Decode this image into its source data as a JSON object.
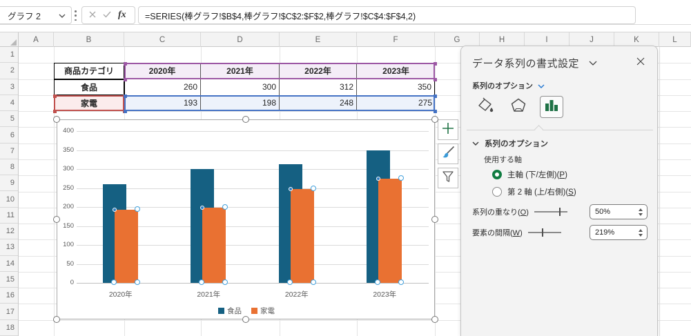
{
  "formula_bar": {
    "name_box_value": "グラフ 2",
    "fx_label": "fx",
    "formula": "=SERIES(棒グラフ!$B$4,棒グラフ!$C$2:$F$2,棒グラフ!$C$4:$F$4,2)"
  },
  "sheet": {
    "column_headers": [
      "A",
      "B",
      "C",
      "D",
      "E",
      "F",
      "G",
      "H",
      "I",
      "J",
      "K",
      "L"
    ],
    "row_headers": [
      "1",
      "2",
      "3",
      "4",
      "5",
      "6",
      "7",
      "8",
      "9",
      "10",
      "11",
      "12",
      "13",
      "14",
      "15",
      "16",
      "17",
      "18"
    ]
  },
  "table": {
    "category_header": "商品カテゴリ",
    "year_headers": [
      "2020年",
      "2021年",
      "2022年",
      "2023年"
    ],
    "rows": [
      {
        "label": "食品",
        "values": [
          "260",
          "300",
          "312",
          "350"
        ]
      },
      {
        "label": "家電",
        "values": [
          "193",
          "198",
          "248",
          "275"
        ]
      }
    ]
  },
  "chart_data": {
    "type": "bar",
    "categories": [
      "2020年",
      "2021年",
      "2022年",
      "2023年"
    ],
    "series": [
      {
        "name": "食品",
        "color": "#156082",
        "values": [
          260,
          300,
          312,
          350
        ]
      },
      {
        "name": "家電",
        "color": "#E97132",
        "values": [
          193,
          198,
          248,
          275
        ]
      }
    ],
    "ylim": [
      0,
      400
    ],
    "ytick_step": 50,
    "grid": true,
    "legend_position": "bottom",
    "selected_series": "家電",
    "overlap_percent": 50,
    "gap_width_percent": 219
  },
  "pane": {
    "title": "データ系列の書式設定",
    "tab_label": "系列のオプション",
    "section_title": "系列のオプション",
    "axis_group_label": "使用する軸",
    "radio_primary": {
      "pre": "主軸 (下/左側)(",
      "key": "P",
      "post": ")"
    },
    "radio_secondary": {
      "pre": "第 2 軸 (上/右側)(",
      "key": "S",
      "post": ")"
    },
    "overlap": {
      "pre": "系列の重なり(",
      "key": "O",
      "post": ")",
      "value": "50%"
    },
    "gap": {
      "pre": "要素の間隔(",
      "key": "W",
      "post": ")",
      "value": "219%"
    }
  },
  "colors": {
    "series1": "#156082",
    "series2": "#E97132",
    "purple_range": "#9c57a4",
    "purple_fill": "#f4edf7",
    "red_range": "#c0504d",
    "red_fill": "#fbecec",
    "blue_range": "#4472c4",
    "blue_fill": "#edf2fb",
    "excel_green": "#107c41"
  }
}
